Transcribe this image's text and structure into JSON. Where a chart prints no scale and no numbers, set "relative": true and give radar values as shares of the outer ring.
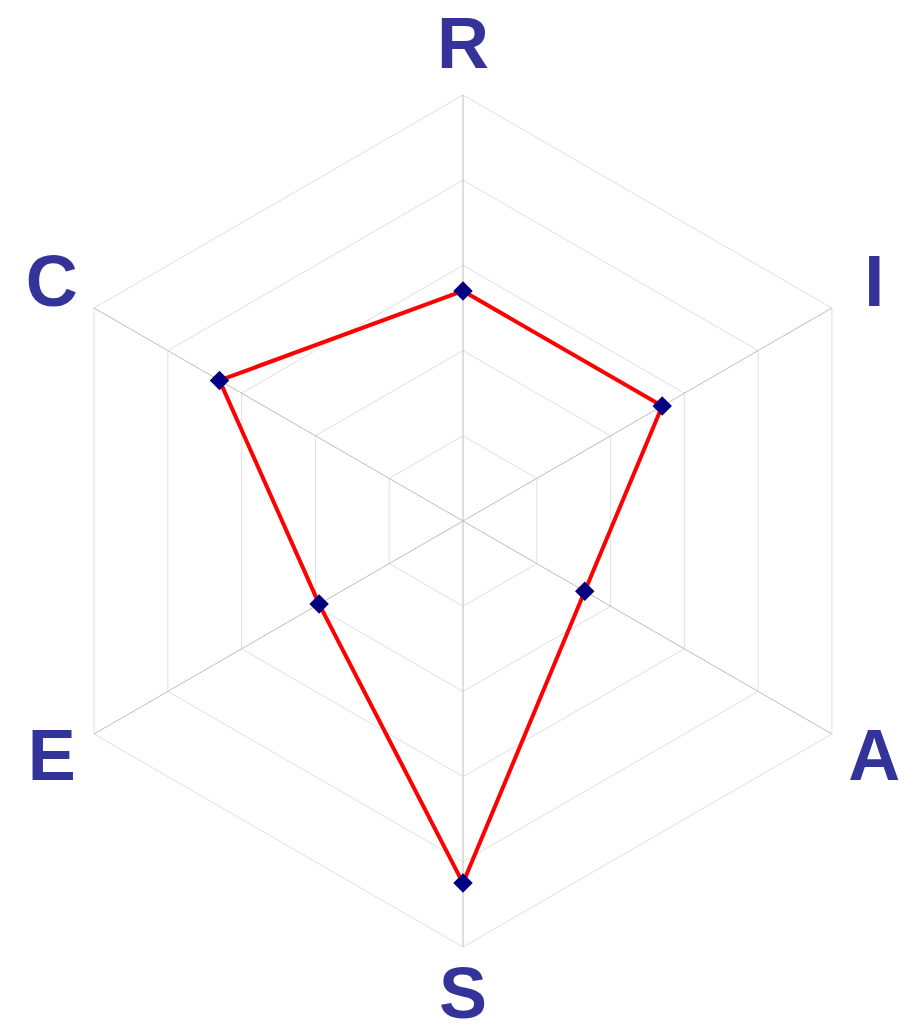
{
  "chart_data": {
    "type": "radar",
    "relative": true,
    "categories": [
      "R",
      "I",
      "A",
      "S",
      "E",
      "C"
    ],
    "series": [
      {
        "color": "#ff0000",
        "values": [
          0.54,
          0.54,
          0.33,
          0.85,
          0.39,
          0.66
        ]
      }
    ],
    "marker": "diamond",
    "line_style": "solid",
    "grid": true
  }
}
